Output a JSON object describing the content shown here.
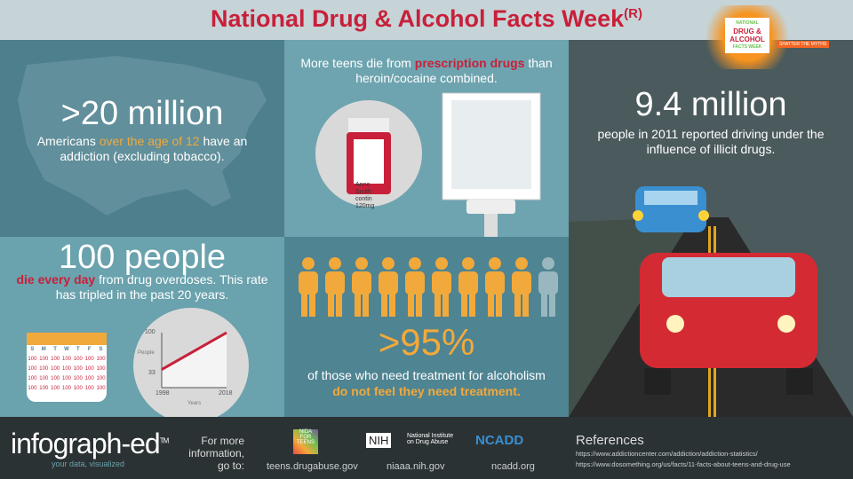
{
  "header": {
    "title": "National Drug & Alcohol Facts Week",
    "title_mark": "(R)",
    "logo_text": [
      "NATIONAL",
      "DRUG &",
      "ALCOHOL",
      "FACTS WEEK",
      "SHATTER THE MYTHS"
    ]
  },
  "stat_addiction": {
    "value": ">20 million",
    "pre": "Americans ",
    "highlight": "over the age of 12",
    "post": " have an addiction (excluding tobacco)."
  },
  "stat_prescription": {
    "pre": "More teens die from ",
    "highlight": "prescription drugs",
    "post": " than heroin/cocaine combined.",
    "bottle_label": [
      "Anne",
      "Smith",
      "contin",
      "120mg"
    ]
  },
  "stat_driving": {
    "value": "9.4 million",
    "text": "people in 2011 reported driving under the influence of illicit drugs."
  },
  "stat_overdose": {
    "value": "100 people",
    "highlight": "die every day",
    "post": " from drug overdoses. This rate has tripled in the past 20 years.",
    "calendar": {
      "days": [
        "S",
        "M",
        "T",
        "W",
        "T",
        "F",
        "S"
      ],
      "cell": "100",
      "rows": 4
    },
    "mini_chart": {
      "y_labels": [
        "100",
        "33"
      ],
      "y_icon_label": "People",
      "x_labels": [
        "1998",
        "2018"
      ],
      "x_icon_label": "Years",
      "values": [
        33,
        100
      ]
    }
  },
  "stat_treatment": {
    "value": ">95%",
    "text": "of those who need treatment for alcoholism",
    "highlight": "do not feel they need treatment.",
    "people_total": 10,
    "fraction": 0.95
  },
  "colors": {
    "red": "#c8203a",
    "orange": "#f2a93b",
    "teal": "#4d7f8c"
  },
  "footer": {
    "brand": "infograph-ed",
    "brand_tm": "TM",
    "tagline": "your data, visualized",
    "more_info": "For more information, go to:",
    "links": [
      {
        "logo": "NIDA FOR TEENS",
        "url": "teens.drugabuse.gov"
      },
      {
        "logo": "NIH",
        "logo_sub": "National Institute on Drug Abuse",
        "url": "niaaa.nih.gov"
      },
      {
        "logo": "NCADD",
        "url": "ncadd.org"
      }
    ],
    "references_title": "References",
    "references": [
      "https://www.addictioncenter.com/addiction/addiction-statistics/",
      "https://www.dosomething.org/us/facts/11-facts-about-teens-and-drug-use"
    ]
  }
}
